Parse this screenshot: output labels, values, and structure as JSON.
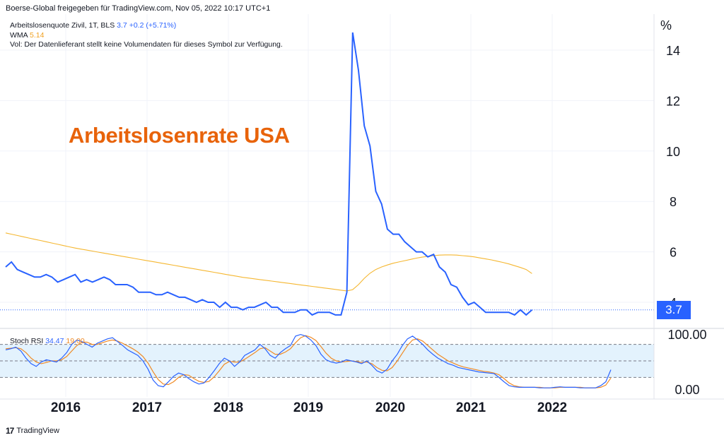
{
  "header": "Boerse-Global freigegeben für TradingView.com, Nov 05, 2022 10:17 UTC+1",
  "legend": {
    "symbol": "Arbeitslosenquote Zivil, 1T, BLS",
    "last": "3.7",
    "change": "+0.2 (+5.71%)",
    "wma_label": "WMA",
    "wma_value": "5.14",
    "vol_note": "Vol: Der Datenlieferant stellt keine Volumendaten für dieses Symbol zur Verfügung."
  },
  "big_title": "Arbeitslosenrate USA",
  "unit_label": "%",
  "price_badge": "3.7",
  "stoch": {
    "label": "Stoch RSI",
    "k": "34.47",
    "d": "19.00"
  },
  "footer": {
    "brand": "TradingView",
    "logo": "17"
  },
  "colors": {
    "price": "#2962ff",
    "wma": "#f5b731",
    "stoch_k": "#2962ff",
    "stoch_d": "#f08a24",
    "band": "#e3f2fd"
  },
  "chart_data": [
    {
      "type": "line",
      "x_start": "2015-04",
      "x_step": "1 month",
      "y_ticks": [
        "4",
        "6",
        "8",
        "10",
        "12",
        "14"
      ],
      "ylim": [
        3.0,
        15.0
      ],
      "x_ticks": [
        "2016",
        "2017",
        "2018",
        "2019",
        "2020",
        "2021",
        "2022"
      ],
      "series": [
        {
          "name": "Arbeitslosenquote Zivil",
          "values": [
            5.4,
            5.6,
            5.3,
            5.2,
            5.1,
            5.0,
            5.0,
            5.1,
            5.0,
            4.8,
            4.9,
            5.0,
            5.1,
            4.8,
            4.9,
            4.8,
            4.9,
            5.0,
            4.9,
            4.7,
            4.7,
            4.7,
            4.6,
            4.4,
            4.4,
            4.4,
            4.3,
            4.3,
            4.4,
            4.3,
            4.2,
            4.2,
            4.1,
            4.0,
            4.1,
            4.0,
            4.0,
            3.8,
            4.0,
            3.8,
            3.8,
            3.7,
            3.8,
            3.8,
            3.9,
            4.0,
            3.8,
            3.8,
            3.6,
            3.6,
            3.6,
            3.7,
            3.7,
            3.5,
            3.6,
            3.6,
            3.6,
            3.5,
            3.5,
            4.4,
            14.7,
            13.2,
            11.0,
            10.2,
            8.4,
            7.9,
            6.9,
            6.7,
            6.7,
            6.4,
            6.2,
            6.0,
            6.0,
            5.8,
            5.9,
            5.4,
            5.2,
            4.7,
            4.6,
            4.2,
            3.9,
            4.0,
            3.8,
            3.6,
            3.6,
            3.6,
            3.6,
            3.6,
            3.5,
            3.7,
            3.5,
            3.7
          ]
        },
        {
          "name": "WMA",
          "values": [
            6.75,
            6.7,
            6.65,
            6.6,
            6.55,
            6.5,
            6.45,
            6.4,
            6.35,
            6.3,
            6.25,
            6.2,
            6.15,
            6.11,
            6.07,
            6.03,
            5.99,
            5.95,
            5.91,
            5.87,
            5.83,
            5.79,
            5.75,
            5.71,
            5.67,
            5.63,
            5.59,
            5.55,
            5.51,
            5.47,
            5.43,
            5.39,
            5.35,
            5.31,
            5.27,
            5.23,
            5.19,
            5.15,
            5.11,
            5.07,
            5.03,
            4.99,
            4.96,
            4.93,
            4.9,
            4.87,
            4.84,
            4.81,
            4.78,
            4.75,
            4.72,
            4.69,
            4.66,
            4.63,
            4.6,
            4.57,
            4.54,
            4.51,
            4.48,
            4.45,
            4.5,
            4.7,
            4.95,
            5.15,
            5.3,
            5.4,
            5.48,
            5.55,
            5.6,
            5.65,
            5.7,
            5.75,
            5.79,
            5.82,
            5.85,
            5.87,
            5.88,
            5.88,
            5.87,
            5.85,
            5.83,
            5.8,
            5.76,
            5.72,
            5.68,
            5.63,
            5.58,
            5.52,
            5.45,
            5.38,
            5.3,
            5.14
          ]
        }
      ]
    },
    {
      "type": "line",
      "title": "Stoch RSI",
      "ylim": [
        -5,
        105
      ],
      "y_ticks": [
        "100.00",
        "0.00"
      ],
      "bands": [
        20,
        50,
        80
      ],
      "series": [
        {
          "name": "K",
          "values": [
            70,
            72,
            75,
            68,
            55,
            45,
            40,
            48,
            52,
            50,
            48,
            55,
            65,
            80,
            88,
            85,
            80,
            75,
            82,
            86,
            90,
            92,
            85,
            78,
            70,
            65,
            60,
            50,
            35,
            15,
            5,
            3,
            12,
            22,
            28,
            25,
            18,
            12,
            8,
            10,
            20,
            32,
            45,
            55,
            50,
            40,
            48,
            60,
            65,
            70,
            80,
            72,
            60,
            55,
            65,
            72,
            78,
            95,
            98,
            95,
            88,
            78,
            62,
            52,
            48,
            46,
            48,
            52,
            50,
            48,
            45,
            50,
            42,
            32,
            28,
            35,
            50,
            62,
            78,
            90,
            95,
            88,
            80,
            70,
            62,
            55,
            50,
            45,
            42,
            38,
            36,
            34,
            32,
            30,
            29,
            28,
            27,
            20,
            12,
            5,
            3,
            2,
            2,
            2,
            2,
            1,
            1,
            1,
            2,
            3,
            2,
            2,
            2,
            1,
            1,
            1,
            1,
            5,
            12,
            34
          ]
        },
        {
          "name": "D",
          "values": [
            72,
            73,
            74,
            72,
            65,
            55,
            48,
            45,
            47,
            50,
            50,
            52,
            58,
            68,
            78,
            84,
            84,
            80,
            80,
            83,
            86,
            88,
            86,
            82,
            77,
            72,
            66,
            58,
            46,
            30,
            16,
            8,
            7,
            12,
            20,
            25,
            24,
            18,
            13,
            11,
            13,
            21,
            32,
            44,
            49,
            48,
            48,
            53,
            59,
            65,
            72,
            74,
            68,
            62,
            62,
            66,
            72,
            83,
            92,
            96,
            93,
            87,
            76,
            64,
            55,
            50,
            48,
            49,
            50,
            49,
            47,
            48,
            45,
            38,
            33,
            32,
            38,
            50,
            64,
            78,
            88,
            90,
            86,
            78,
            70,
            62,
            56,
            50,
            46,
            42,
            39,
            37,
            35,
            33,
            31,
            30,
            28,
            25,
            18,
            10,
            5,
            3,
            2,
            2,
            2,
            2,
            1,
            1,
            1,
            2,
            2,
            2,
            2,
            2,
            1,
            1,
            1,
            2,
            6,
            19
          ]
        }
      ]
    }
  ]
}
